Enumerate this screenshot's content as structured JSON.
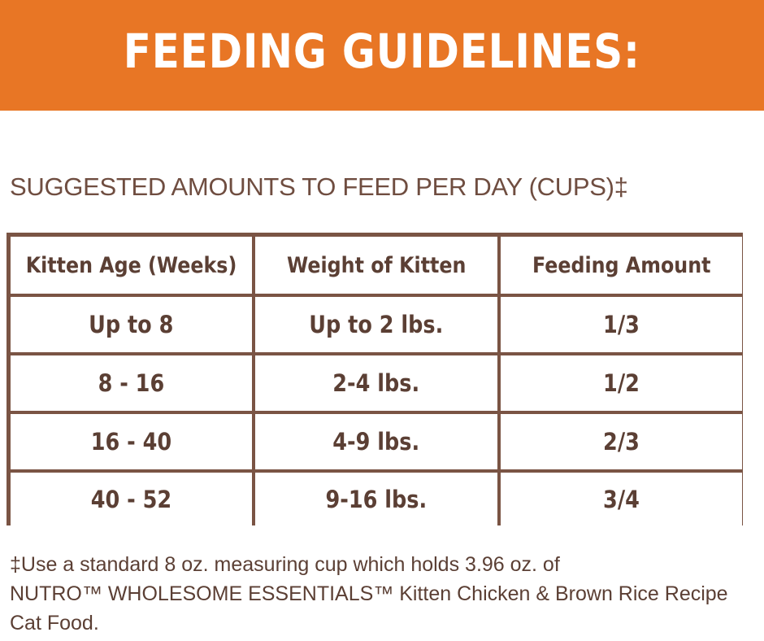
{
  "header": {
    "title": "FEEDING GUIDELINES:"
  },
  "subtitle": "SUGGESTED AMOUNTS TO FEED PER DAY (CUPS)‡",
  "table": {
    "columns": [
      "Kitten Age (Weeks)",
      "Weight of Kitten",
      "Feeding Amount"
    ],
    "rows": [
      [
        "Up to 8",
        "Up to 2 lbs.",
        "1/3"
      ],
      [
        "8 - 16",
        "2-4 lbs.",
        "1/2"
      ],
      [
        "16 - 40",
        "4-9 lbs.",
        "2/3"
      ],
      [
        "40 - 52",
        "9-16 lbs.",
        "3/4"
      ]
    ]
  },
  "footnote": {
    "line1": "‡Use a standard 8 oz. measuring cup which holds 3.96 oz. of",
    "line2": "NUTRO™ WHOLESOME ESSENTIALS™ Kitten Chicken & Brown Rice Recipe",
    "line3": "Cat Food."
  },
  "colors": {
    "banner": "#e87625",
    "table_border": "#7a5444",
    "text": "#5b3f34"
  }
}
